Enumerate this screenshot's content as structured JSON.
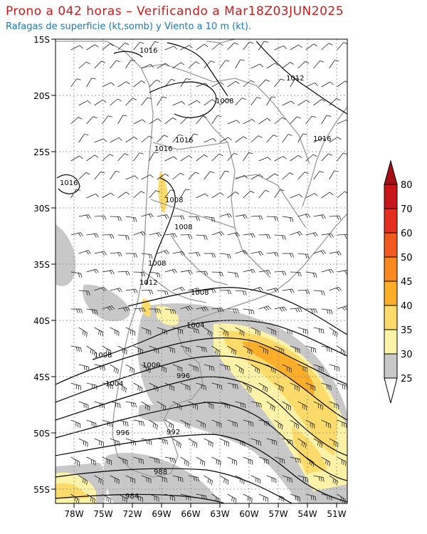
{
  "header": {
    "title": "Prono a 042 horas – Verificando a Mar18Z03JUN2025",
    "subtitle": "Rafagas de superficie (kt,somb) y Viento a 10 m (kt)."
  },
  "map": {
    "lat_labels": [
      "15S",
      "20S",
      "25S",
      "30S",
      "35S",
      "40S",
      "45S",
      "50S",
      "55S"
    ],
    "lon_labels": [
      "78W",
      "75W",
      "72W",
      "69W",
      "66W",
      "63W",
      "60W",
      "57W",
      "54W",
      "51W"
    ],
    "isobar_labels": [
      "1016",
      "1012",
      "1008",
      "1016",
      "1016",
      "1016",
      "1016",
      "1008",
      "1008",
      "1008",
      "1012",
      "1008",
      "1004",
      "1008",
      "1000",
      "1004",
      "996",
      "996",
      "992",
      "988",
      "984"
    ]
  },
  "colorbar": {
    "labels": [
      "80",
      "70",
      "60",
      "50",
      "45",
      "40",
      "35",
      "30",
      "25"
    ],
    "colors": [
      "#a50f15",
      "#c8171b",
      "#e3301f",
      "#f05a1e",
      "#f7891e",
      "#fbae2a",
      "#fddb6a",
      "#fdf3a8",
      "#c8c8c8"
    ]
  }
}
